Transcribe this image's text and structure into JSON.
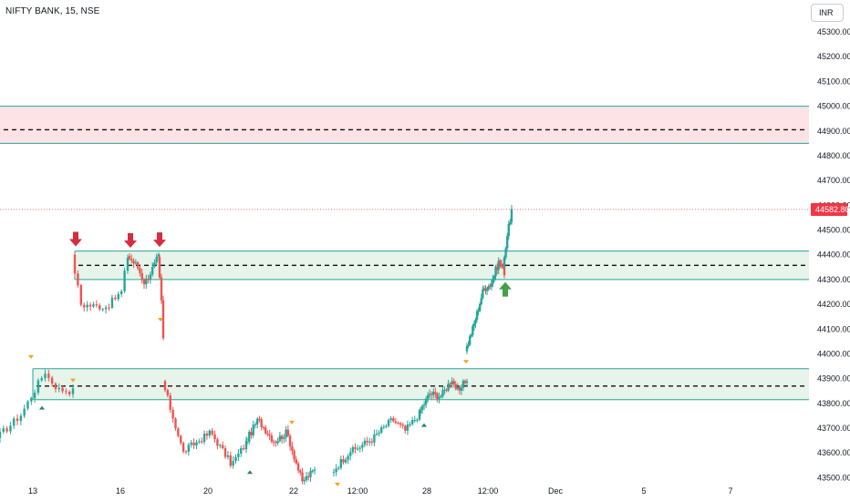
{
  "header": {
    "title": "NIFTY BANK, 15, NSE",
    "currency": "INR"
  },
  "colors": {
    "up": "#26a69a",
    "down": "#ef5350",
    "zone_red_fill": "#fde3e6",
    "zone_green_fill": "#e6f4ea",
    "zone_border": "#26a69a",
    "price_label_bg": "#f23645",
    "signal_down_arrow": "#d32f3f",
    "signal_up_arrow": "#43a047",
    "marker_orange": "#f7a21b"
  },
  "chart_data": {
    "type": "candlestick",
    "symbol": "NIFTY BANK",
    "interval": "15",
    "exchange": "NSE",
    "y_range": [
      43480,
      45330
    ],
    "y_ticks": [
      45300,
      45200,
      45100,
      45000,
      44900,
      44800,
      44700,
      44600,
      44500,
      44400,
      44300,
      44200,
      44100,
      44000,
      43900,
      43800,
      43700,
      43600,
      43500
    ],
    "y_tick_labels": [
      "45300.00",
      "45200.00",
      "45100.00",
      "45000.00",
      "44900.00",
      "44800.00",
      "44700.00",
      "44600.00",
      "44500.00",
      "44400.00",
      "44300.00",
      "44200.00",
      "44100.00",
      "44000.00",
      "43900.00",
      "43800.00",
      "43700.00",
      "43600.00",
      "43500.00"
    ],
    "x_ticks": [
      "13",
      "16",
      "20",
      "22",
      "12:00",
      "28",
      "12:00",
      "Dec",
      "5",
      "7"
    ],
    "current_price": 44582.8,
    "current_price_label": "44582.80",
    "zones": [
      {
        "kind": "supply",
        "top": 45000,
        "bottom": 44850,
        "mid": 44905
      },
      {
        "kind": "demand",
        "top": 44415,
        "bottom": 44300,
        "mid": 44350
      },
      {
        "kind": "demand",
        "top": 43940,
        "bottom": 43815,
        "mid": 43870
      }
    ],
    "sessions": [
      {
        "open": 43660,
        "segs": [
          [
            6,
            43740
          ],
          [
            8,
            43930
          ],
          [
            3,
            43870
          ],
          [
            5,
            43850
          ]
        ]
      },
      {
        "open": 44400,
        "segs": [
          [
            3,
            44200
          ],
          [
            8,
            44190
          ],
          [
            5,
            44250
          ],
          [
            2,
            44395
          ]
        ]
      },
      {
        "open": 44395,
        "segs": [
          [
            4,
            44360
          ],
          [
            4,
            44290
          ],
          [
            5,
            44360
          ],
          [
            2,
            44390
          ]
        ]
      },
      {
        "open": 44390,
        "segs": [
          [
            2,
            44210
          ],
          [
            1,
            44060
          ]
        ]
      },
      {
        "open": 43890,
        "segs": [
          [
            8,
            43600
          ],
          [
            10,
            43680
          ],
          [
            8,
            43560
          ],
          [
            6,
            43640
          ]
        ]
      },
      {
        "open": 43640,
        "segs": [
          [
            6,
            43730
          ],
          [
            8,
            43650
          ],
          [
            6,
            43680
          ],
          [
            8,
            43480
          ],
          [
            6,
            43530
          ]
        ]
      },
      {
        "open": 43520,
        "segs": [
          [
            8,
            43610
          ],
          [
            8,
            43650
          ],
          [
            9,
            43730
          ],
          [
            6,
            43690
          ],
          [
            6,
            43760
          ]
        ]
      },
      {
        "open": 43760,
        "segs": [
          [
            6,
            43840
          ],
          [
            6,
            43830
          ],
          [
            6,
            43900
          ],
          [
            4,
            43840
          ],
          [
            4,
            43900
          ]
        ]
      },
      {
        "open": 44010,
        "segs": [
          [
            6,
            44120
          ],
          [
            6,
            44250
          ],
          [
            5,
            44280
          ],
          [
            6,
            44370
          ],
          [
            4,
            44330
          ]
        ]
      },
      {
        "open": 44350,
        "segs": [
          [
            3,
            44480
          ],
          [
            3,
            44580
          ]
        ]
      }
    ],
    "signals": [
      {
        "type": "sell-arrow",
        "session": 1,
        "index": 0
      },
      {
        "type": "sell-arrow",
        "session": 2,
        "index": 0
      },
      {
        "type": "sell-arrow",
        "session": 2,
        "index": 14
      },
      {
        "type": "buy-arrow",
        "session": 8,
        "index": 26
      }
    ]
  }
}
